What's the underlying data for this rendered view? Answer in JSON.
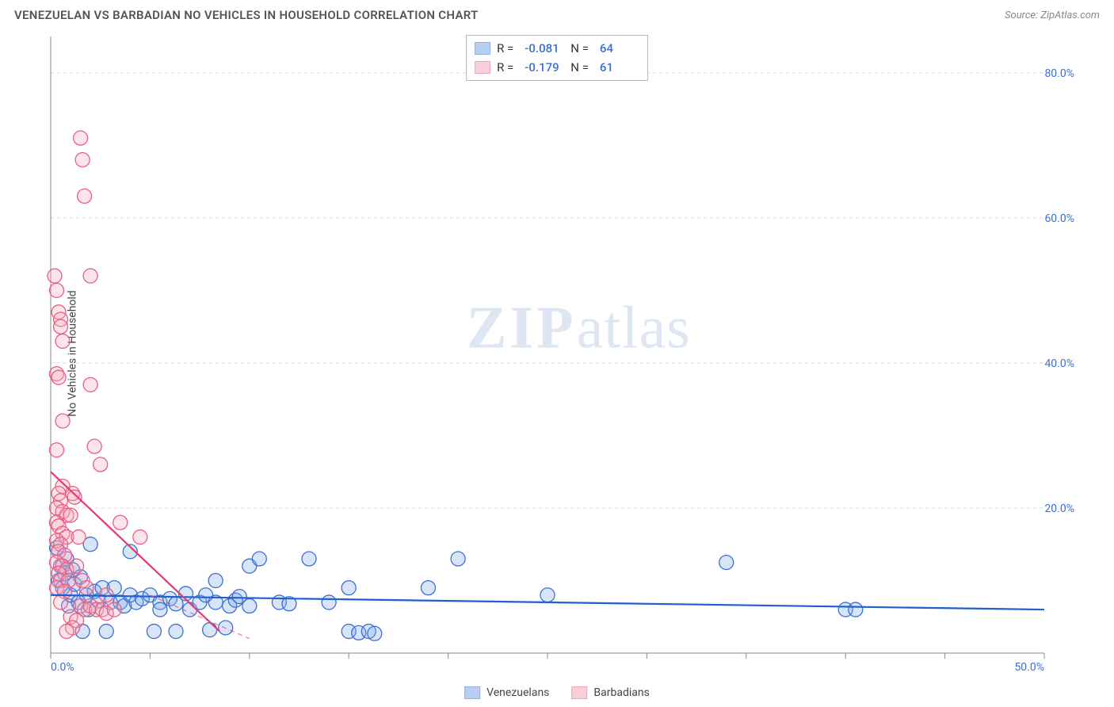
{
  "header": {
    "title": "VENEZUELAN VS BARBADIAN NO VEHICLES IN HOUSEHOLD CORRELATION CHART",
    "source_label": "Source: ZipAtlas.com"
  },
  "watermark": {
    "prefix": "ZIP",
    "suffix": "atlas"
  },
  "chart": {
    "type": "scatter",
    "yaxis_label": "No Vehicles in Household",
    "background_color": "#ffffff",
    "grid_color": "#d9d9d9",
    "axis_line_color": "#888888",
    "tick_color": "#888888",
    "xlim": [
      0,
      50
    ],
    "ylim": [
      0,
      85
    ],
    "xticks": [
      0,
      5,
      10,
      15,
      20,
      25,
      30,
      35,
      40,
      45,
      50
    ],
    "xtick_labels_shown": {
      "0": "0.0%",
      "50": "50.0%"
    },
    "yticks": [
      20,
      40,
      60,
      80
    ],
    "ytick_labels": [
      "20.0%",
      "40.0%",
      "60.0%",
      "80.0%"
    ],
    "marker_radius": 9,
    "marker_fill_opacity": 0.3,
    "marker_stroke_width": 1.3,
    "trend_line_width": 2.2,
    "trend_line_dash_secondary": "6 5",
    "series": [
      {
        "id": "venezuelans",
        "label": "Venezuelans",
        "color_fill": "#7fa8e8",
        "color_stroke": "#3b70d1",
        "trend_color": "#1f5fd0",
        "R": "-0.081",
        "N": "64",
        "points": [
          [
            0.3,
            14.5
          ],
          [
            0.4,
            10.0
          ],
          [
            0.5,
            12.0
          ],
          [
            0.6,
            9.0
          ],
          [
            0.7,
            11.0
          ],
          [
            0.8,
            13.0
          ],
          [
            0.9,
            6.5
          ],
          [
            1.0,
            8.0
          ],
          [
            1.1,
            11.5
          ],
          [
            1.2,
            9.5
          ],
          [
            1.4,
            7.0
          ],
          [
            1.5,
            10.5
          ],
          [
            1.6,
            3.0
          ],
          [
            1.8,
            8.0
          ],
          [
            1.9,
            6.0
          ],
          [
            2.0,
            15.0
          ],
          [
            2.2,
            8.5
          ],
          [
            2.4,
            7.2
          ],
          [
            2.6,
            9.0
          ],
          [
            2.8,
            3.0
          ],
          [
            3.0,
            7.0
          ],
          [
            3.2,
            9.0
          ],
          [
            3.5,
            7.0
          ],
          [
            3.7,
            6.5
          ],
          [
            4.0,
            8.0
          ],
          [
            4.0,
            14.0
          ],
          [
            4.3,
            7.0
          ],
          [
            4.6,
            7.5
          ],
          [
            5.0,
            8.0
          ],
          [
            5.2,
            3.0
          ],
          [
            5.5,
            7.0
          ],
          [
            5.5,
            6.0
          ],
          [
            6.0,
            7.5
          ],
          [
            6.3,
            6.8
          ],
          [
            6.3,
            3.0
          ],
          [
            6.8,
            8.2
          ],
          [
            7.0,
            6.0
          ],
          [
            7.5,
            7.0
          ],
          [
            7.8,
            8.0
          ],
          [
            8.0,
            3.2
          ],
          [
            8.3,
            10.0
          ],
          [
            8.3,
            7.0
          ],
          [
            8.8,
            3.5
          ],
          [
            9.0,
            6.5
          ],
          [
            9.3,
            7.3
          ],
          [
            9.5,
            7.8
          ],
          [
            10.0,
            12.0
          ],
          [
            10.0,
            6.5
          ],
          [
            10.5,
            13.0
          ],
          [
            11.5,
            7.0
          ],
          [
            12.0,
            6.8
          ],
          [
            13.0,
            13.0
          ],
          [
            14.0,
            7.0
          ],
          [
            15.0,
            9.0
          ],
          [
            15.0,
            3.0
          ],
          [
            15.5,
            2.8
          ],
          [
            16.0,
            3.0
          ],
          [
            16.3,
            2.7
          ],
          [
            19.0,
            9.0
          ],
          [
            20.5,
            13.0
          ],
          [
            25.0,
            8.0
          ],
          [
            34.0,
            12.5
          ],
          [
            40.0,
            6.0
          ],
          [
            40.5,
            6.0
          ]
        ],
        "trend": {
          "x1": 0,
          "y1": 8.0,
          "x2": 50,
          "y2": 6.0
        }
      },
      {
        "id": "barbadians",
        "label": "Barbadians",
        "color_fill": "#f4a8ba",
        "color_stroke": "#e75d87",
        "trend_color": "#e63b6e",
        "R": "-0.179",
        "N": "61",
        "points": [
          [
            0.2,
            52.0
          ],
          [
            0.3,
            50.0
          ],
          [
            0.4,
            47.0
          ],
          [
            0.5,
            46.0
          ],
          [
            0.5,
            45.0
          ],
          [
            0.6,
            43.0
          ],
          [
            0.3,
            38.5
          ],
          [
            0.4,
            38.0
          ],
          [
            0.6,
            32.0
          ],
          [
            0.3,
            28.0
          ],
          [
            0.6,
            23.0
          ],
          [
            0.4,
            22.0
          ],
          [
            0.5,
            21.0
          ],
          [
            0.3,
            20.0
          ],
          [
            0.6,
            19.5
          ],
          [
            0.8,
            19.0
          ],
          [
            0.3,
            18.0
          ],
          [
            0.4,
            17.5
          ],
          [
            0.6,
            16.5
          ],
          [
            0.8,
            16.0
          ],
          [
            0.3,
            15.5
          ],
          [
            0.5,
            15.0
          ],
          [
            0.4,
            14.0
          ],
          [
            0.7,
            13.5
          ],
          [
            0.3,
            12.5
          ],
          [
            0.6,
            12.0
          ],
          [
            0.8,
            11.5
          ],
          [
            0.4,
            11.0
          ],
          [
            0.5,
            10.0
          ],
          [
            0.9,
            10.0
          ],
          [
            0.3,
            9.0
          ],
          [
            0.7,
            8.5
          ],
          [
            0.5,
            7.0
          ],
          [
            1.1,
            22.0
          ],
          [
            1.2,
            21.5
          ],
          [
            1.0,
            19.0
          ],
          [
            1.4,
            16.0
          ],
          [
            1.3,
            12.0
          ],
          [
            1.6,
            10.0
          ],
          [
            1.8,
            9.0
          ],
          [
            1.5,
            6.5
          ],
          [
            1.7,
            6.0
          ],
          [
            1.0,
            5.0
          ],
          [
            1.3,
            4.5
          ],
          [
            1.1,
            3.5
          ],
          [
            0.8,
            3.0
          ],
          [
            1.5,
            71.0
          ],
          [
            1.6,
            68.0
          ],
          [
            1.7,
            63.0
          ],
          [
            2.0,
            52.0
          ],
          [
            2.0,
            37.0
          ],
          [
            2.2,
            28.5
          ],
          [
            2.5,
            26.0
          ],
          [
            2.8,
            8.0
          ],
          [
            2.0,
            6.5
          ],
          [
            2.3,
            6.0
          ],
          [
            2.6,
            6.0
          ],
          [
            2.8,
            5.5
          ],
          [
            3.2,
            6.0
          ],
          [
            3.5,
            18.0
          ],
          [
            4.5,
            16.0
          ]
        ],
        "trend": {
          "x1": 0,
          "y1": 25.0,
          "x2": 8.5,
          "y2": 3.0
        },
        "trend_extra_dash": {
          "x1": 5.0,
          "y1": 8.0,
          "x2": 10.0,
          "y2": 2.0
        }
      }
    ]
  },
  "stats_box": {
    "border_color": "#b7b7b7",
    "rows": [
      {
        "swatch_series": 0,
        "labels": [
          "R =",
          "N ="
        ]
      },
      {
        "swatch_series": 1,
        "labels": [
          "R =",
          "N ="
        ]
      }
    ]
  },
  "legend_bottom": {
    "items": [
      {
        "series": 0
      },
      {
        "series": 1
      }
    ]
  }
}
